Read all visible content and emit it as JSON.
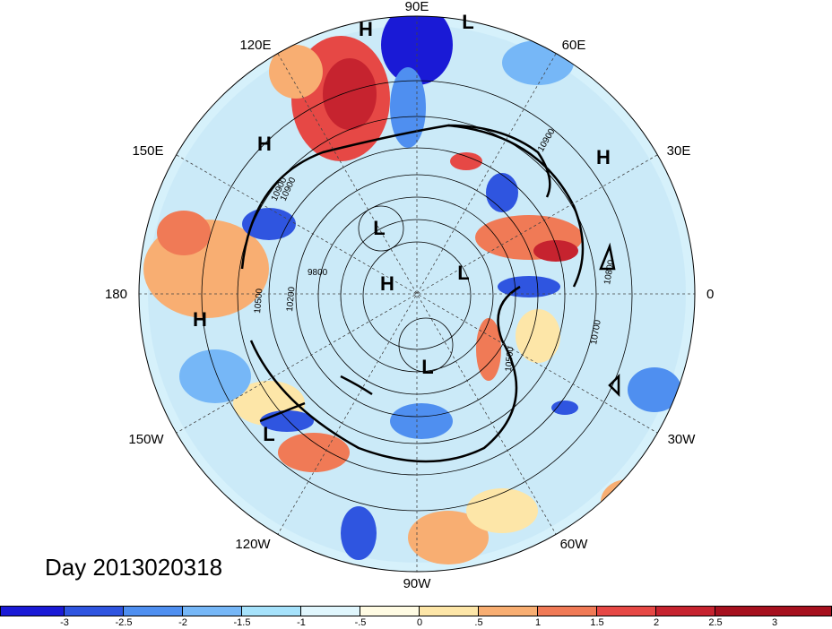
{
  "map": {
    "projection": "north-polar-stereographic",
    "longitude_labels": [
      "90E",
      "60E",
      "30E",
      "0",
      "30W",
      "60W",
      "90W",
      "120W",
      "150W",
      "180",
      "150E",
      "120E"
    ],
    "pressure_labels": [
      "H",
      "L",
      "H",
      "H",
      "L",
      "H",
      "L",
      "H",
      "L",
      "L"
    ],
    "contour_labels": [
      "10900",
      "10900",
      "10800",
      "10700",
      "10900",
      "9800",
      "10500",
      "10200",
      "10500"
    ]
  },
  "title": {
    "text": "Day 2013020318"
  },
  "colorbar": {
    "colors": [
      "#1a1ad6",
      "#2f55e0",
      "#4f8ff0",
      "#76b7f7",
      "#a6e2fb",
      "#e0f6fd",
      "#fffbe3",
      "#fde6a8",
      "#f8ae72",
      "#f07a56",
      "#e64845",
      "#c6232f",
      "#a6101e"
    ],
    "tick_labels": [
      "-3",
      "-2.5",
      "-2",
      "-1.5",
      "-1",
      "-.5",
      "0",
      ".5",
      "1",
      "1.5",
      "2",
      "2.5",
      "3"
    ]
  }
}
